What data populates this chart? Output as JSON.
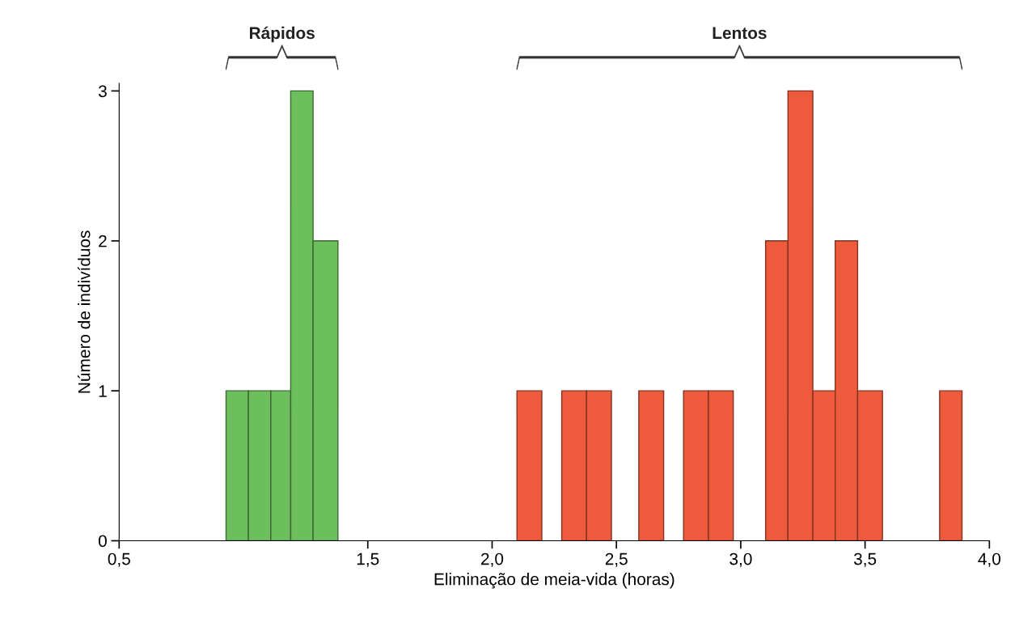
{
  "chart_data": {
    "type": "histogram",
    "xlabel": "Eliminação de meia-vida (horas)",
    "ylabel": "Número de indivíduos",
    "bins": [
      0.93,
      1.02,
      1.11,
      1.19,
      1.28,
      1.38,
      2.1,
      2.2,
      2.28,
      2.38,
      2.48,
      2.59,
      2.69,
      2.77,
      2.87,
      2.97,
      3.1,
      3.19,
      3.29,
      3.38,
      3.47,
      3.57,
      3.8,
      3.89
    ],
    "values": [
      1,
      1,
      1,
      3,
      2,
      0,
      1,
      0,
      1,
      1,
      0,
      1,
      0,
      1,
      1,
      0,
      2,
      3,
      1,
      2,
      1,
      0,
      1
    ],
    "colors": [
      "#6cbf5c",
      "#6cbf5c",
      "#6cbf5c",
      "#6cbf5c",
      "#6cbf5c",
      "#ee5a3c",
      "#ee5a3c",
      "#ee5a3c",
      "#ee5a3c",
      "#ee5a3c",
      "#ee5a3c",
      "#ee5a3c",
      "#ee5a3c",
      "#ee5a3c",
      "#ee5a3c",
      "#ee5a3c",
      "#ee5a3c",
      "#ee5a3c",
      "#ee5a3c",
      "#ee5a3c",
      "#ee5a3c",
      "#ee5a3c",
      "#ee5a3c"
    ],
    "annotations": [
      "Rápidos",
      "Lentos"
    ],
    "xlim": [
      0.5,
      4.0
    ],
    "xticks": [
      {
        "value": 0.5,
        "label": "0,5"
      },
      {
        "value": 1.5,
        "label": "1,5"
      },
      {
        "value": 2.0,
        "label": "2,0"
      },
      {
        "value": 2.5,
        "label": "2,5"
      },
      {
        "value": 3.0,
        "label": "3,0"
      },
      {
        "value": 3.5,
        "label": "3,5"
      },
      {
        "value": 4.0,
        "label": "4,0"
      }
    ],
    "ylim": [
      0,
      3.05
    ],
    "yticks": [
      0,
      1,
      2,
      3
    ],
    "grid": false,
    "legend": false
  }
}
